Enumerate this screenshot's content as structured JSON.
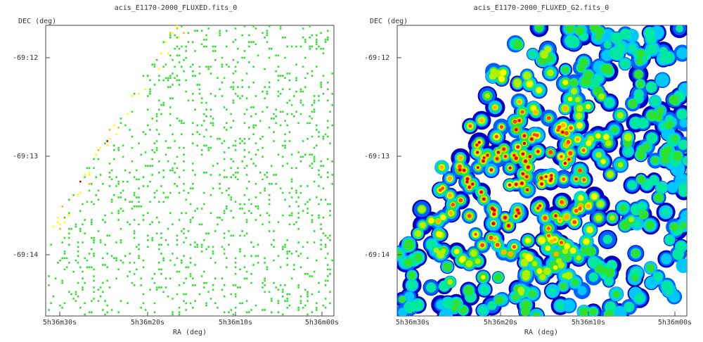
{
  "panels": [
    {
      "title": "acis_E1170-2000_FLUXED.fits_0",
      "ylabel": "DEC (deg)",
      "xlabel": "RA (deg)",
      "yticks": [
        "-69:12",
        "-69:13",
        "-69:14"
      ],
      "xticks": [
        "5h36m30s",
        "5h36m20s",
        "5h36m10s",
        "5h36m00s"
      ],
      "style": "sparse-events"
    },
    {
      "title": "acis_E1170-2000_FLUXED_G2.fits_0",
      "ylabel": "DEC (deg)",
      "xlabel": "RA (deg)",
      "yticks": [
        "-69:12",
        "-69:13",
        "-69:14"
      ],
      "xticks": [
        "5h36m30s",
        "5h36m20s",
        "5h36m10s",
        "5h36m00s"
      ],
      "style": "smoothed-heatmap"
    }
  ],
  "colormap": [
    "#0000c0",
    "#0060ff",
    "#00c8ff",
    "#00e8a0",
    "#30e030",
    "#b0f000",
    "#ffff00",
    "#ffb000",
    "#ff4000",
    "#c00000"
  ]
}
